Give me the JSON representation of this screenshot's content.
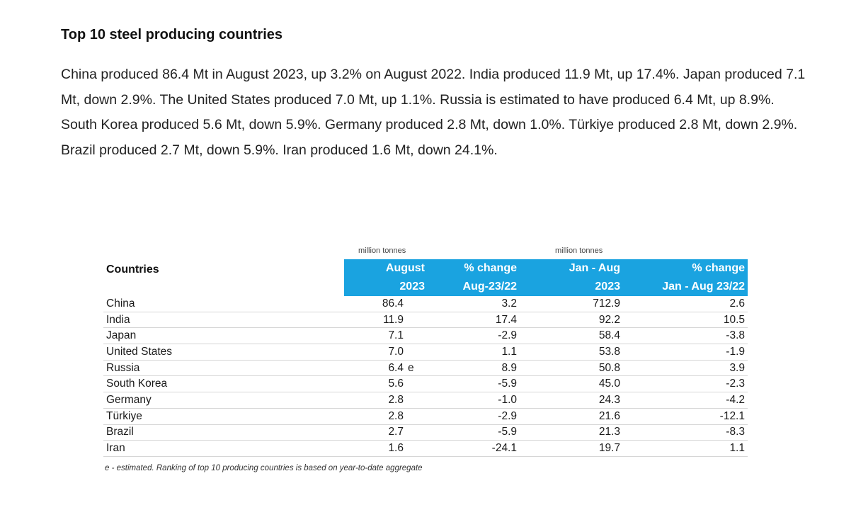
{
  "heading": "Top 10 steel producing countries",
  "paragraph": "China produced 86.4 Mt in August 2023, up 3.2% on August 2022. India produced 11.9 Mt, up 17.4%. Japan produced 7.1 Mt, down 2.9%. The United States produced 7.0 Mt, up 1.1%. Russia is estimated to have produced 6.4 Mt, up 8.9%. South Korea produced 5.6 Mt, down 5.9%. Germany produced 2.8 Mt, down 1.0%. Türkiye produced 2.8 Mt, down 2.9%. Brazil produced 2.7 Mt, down 5.9%. Iran produced 1.6 Mt, down 24.1%.",
  "table": {
    "units_monthly": "million tonnes",
    "units_ytd": "million tonnes",
    "headers": {
      "country": "Countries",
      "august_line1": "August",
      "august_line2": "2023",
      "pct_line1": "% change",
      "pct_line2": "Aug-23/22",
      "ytd_line1": "Jan - Aug",
      "ytd_line2": "2023",
      "ytdpct_line1": "% change",
      "ytdpct_line2": "Jan - Aug 23/22"
    },
    "header_color": "#1aa3e0",
    "rows": [
      {
        "country": "China",
        "august": "86.4",
        "flag": "",
        "pct": "3.2",
        "ytd": "712.9",
        "ytd_pct": "2.6"
      },
      {
        "country": "India",
        "august": "11.9",
        "flag": "",
        "pct": "17.4",
        "ytd": "92.2",
        "ytd_pct": "10.5"
      },
      {
        "country": "Japan",
        "august": "7.1",
        "flag": "",
        "pct": "-2.9",
        "ytd": "58.4",
        "ytd_pct": "-3.8"
      },
      {
        "country": "United States",
        "august": "7.0",
        "flag": "",
        "pct": "1.1",
        "ytd": "53.8",
        "ytd_pct": "-1.9"
      },
      {
        "country": "Russia",
        "august": "6.4",
        "flag": "e",
        "pct": "8.9",
        "ytd": "50.8",
        "ytd_pct": "3.9"
      },
      {
        "country": "South Korea",
        "august": "5.6",
        "flag": "",
        "pct": "-5.9",
        "ytd": "45.0",
        "ytd_pct": "-2.3"
      },
      {
        "country": "Germany",
        "august": "2.8",
        "flag": "",
        "pct": "-1.0",
        "ytd": "24.3",
        "ytd_pct": "-4.2"
      },
      {
        "country": "Türkiye",
        "august": "2.8",
        "flag": "",
        "pct": "-2.9",
        "ytd": "21.6",
        "ytd_pct": "-12.1"
      },
      {
        "country": "Brazil",
        "august": "2.7",
        "flag": "",
        "pct": "-5.9",
        "ytd": "21.3",
        "ytd_pct": "-8.3"
      },
      {
        "country": "Iran",
        "august": "1.6",
        "flag": "",
        "pct": "-24.1",
        "ytd": "19.7",
        "ytd_pct": "1.1"
      }
    ]
  },
  "footnote": "e - estimated. Ranking of top 10 producing countries is based on year-to-date aggregate"
}
